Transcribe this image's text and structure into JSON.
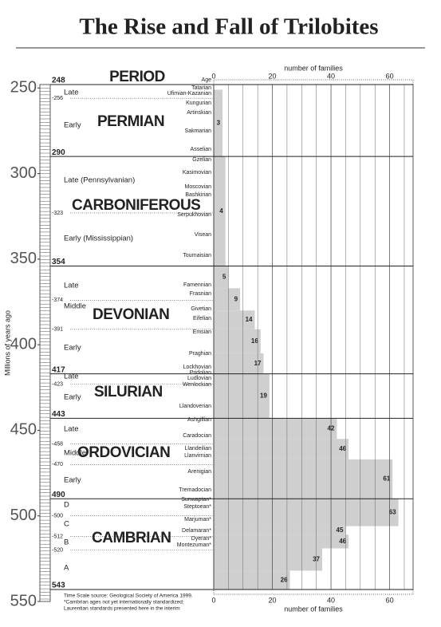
{
  "chart_data": {
    "type": "histogram",
    "orientation": "horizontal",
    "title": "The Rise and Fall of Trilobites",
    "period_header": "PERIOD",
    "age_header": "Age",
    "xlabel": "number of families",
    "ylabel": "Millions of years ago",
    "notes": [
      "Time Scale source: Geological Society of America 1999.",
      "*Cambrian ages not yet internationally standardized;",
      "Laurentian standards presented here in the interim"
    ],
    "xlim": [
      0,
      68
    ],
    "xticks": [
      0,
      20,
      40,
      60
    ],
    "ylim": [
      248,
      550
    ],
    "yticks": [
      250,
      300,
      350,
      400,
      450,
      500,
      550
    ],
    "bins": [
      251,
      290,
      354,
      367,
      380,
      391,
      405,
      417,
      443,
      455,
      467,
      490,
      506,
      511,
      519,
      532,
      543
    ],
    "counts": [
      3,
      4,
      5,
      9,
      14,
      16,
      17,
      19,
      42,
      46,
      61,
      63,
      45,
      46,
      37,
      26
    ],
    "color": "#cfcfcf",
    "period_boundaries": [
      248,
      290,
      354,
      417,
      443,
      490,
      543
    ],
    "epoch_boundaries": [
      {
        "value": 256,
        "label": "-256"
      },
      {
        "value": 323,
        "label": "-323"
      },
      {
        "value": 374,
        "label": "-374"
      },
      {
        "value": 391,
        "label": "-391"
      },
      {
        "value": 423,
        "label": "-423"
      },
      {
        "value": 458,
        "label": "-458"
      },
      {
        "value": 470,
        "label": "-470"
      },
      {
        "value": 500,
        "label": "-500"
      },
      {
        "value": 512,
        "label": "-512"
      },
      {
        "value": 520,
        "label": "-520"
      }
    ],
    "periods": [
      "PERMIAN",
      "CARBONIFEROUS",
      "DEVONIAN",
      "SILURIAN",
      "ORDOVICIAN",
      "CAMBRIAN"
    ],
    "epochs": [
      "Late",
      "Early",
      "Late (Pennsylvanian)",
      "Early (Mississippian)",
      "Late",
      "Middle",
      "Early",
      "Late",
      "Early",
      "Late",
      "Middle",
      "Early",
      "D",
      "C",
      "B",
      "A"
    ],
    "stages": [
      "Tatarian",
      "Ufimian-Kazanian",
      "Kungurian",
      "Artinskian",
      "Sakmarian",
      "Asselian",
      "Gzelian",
      "Kasimovian",
      "Moscovian",
      "Bashkirian",
      "Serpukhovian",
      "Visean",
      "Tournaisian",
      "Famennian",
      "Frasnian",
      "Givetian",
      "Eifelian",
      "Emsian",
      "Praghian",
      "Lockhovian",
      "Pridolian",
      "Ludlovian",
      "Wenlockian",
      "Llandoverian",
      "Ashgillian",
      "Caradocian",
      "Llandeilian",
      "Llanvirnian",
      "Arenigian",
      "Tremadocian",
      "Sunwaptan*",
      "Steptoean*",
      "Marjuman*",
      "Delamaran*",
      "Dyeran*",
      "Montezuman*"
    ]
  }
}
